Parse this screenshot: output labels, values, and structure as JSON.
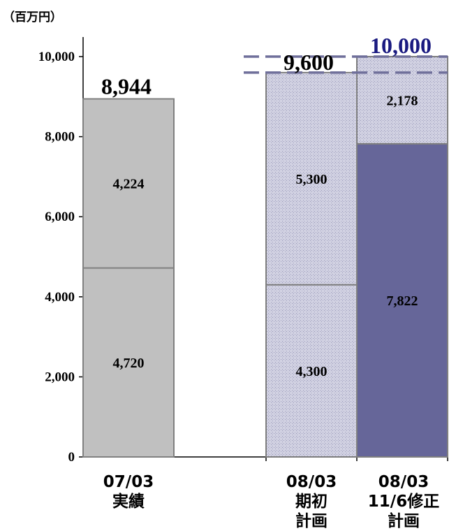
{
  "chart_data": {
    "type": "bar",
    "stacked": true,
    "unit_label": "（百万円）",
    "yticks": [
      "0",
      "2,000",
      "4,000",
      "6,000",
      "8,000",
      "10,000"
    ],
    "ylim": [
      0,
      10000
    ],
    "grid": false,
    "bars": [
      {
        "category_lines": [
          "07/03",
          "実績"
        ],
        "total": 8944,
        "total_label": "8,944",
        "total_color": "#000000",
        "segments": [
          {
            "value": 4720,
            "label": "4,720",
            "style": "gray"
          },
          {
            "value": 4224,
            "label": "4,224",
            "style": "gray"
          }
        ]
      },
      {
        "category_lines": [
          "08/03",
          "期初",
          "計画"
        ],
        "total": 9600,
        "total_label": "9,600",
        "total_color": "#000000",
        "segments": [
          {
            "value": 4300,
            "label": "4,300",
            "style": "hatched"
          },
          {
            "value": 5300,
            "label": "5,300",
            "style": "hatched"
          }
        ]
      },
      {
        "category_lines": [
          "08/03",
          "11/6修正",
          "計画"
        ],
        "total": 10000,
        "total_label": "10,000",
        "total_color": "#1a1a80",
        "segments": [
          {
            "value": 7822,
            "label": "7,822",
            "style": "purple"
          },
          {
            "value": 2178,
            "label": "2,178",
            "style": "hatched"
          }
        ]
      }
    ],
    "reference_lines": [
      {
        "value": 9600
      },
      {
        "value": 10000
      }
    ],
    "colors": {
      "gray": "#c0c0c0",
      "hatched_base": "#dcdcea",
      "hatched_dot": "#8080a8",
      "purple": "#666699",
      "dashed_line": "#6f6f9a"
    }
  }
}
